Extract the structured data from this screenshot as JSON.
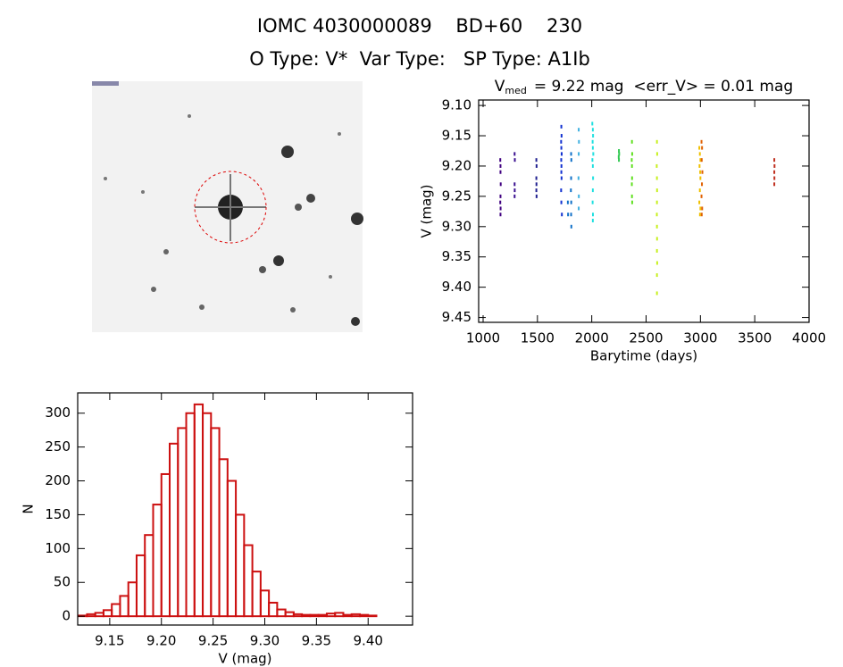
{
  "header": {
    "line1": "IOMC 4030000089    BD+60    230",
    "line2": "O Type: V*  Var Type:   SP Type: A1Ib"
  },
  "chart_data": [
    {
      "type": "scatter",
      "title": {
        "main": "V",
        "sub": "med",
        "rest": "= 9.22 mag  <err_V> = 0.01 mag"
      },
      "x_label": "Barytime (days)",
      "y_label": "V (mag)",
      "xlim": [
        959,
        4000
      ],
      "xticks": [
        1000,
        1500,
        2000,
        2500,
        3000,
        3500,
        4000
      ],
      "ylim": [
        9.458,
        9.091
      ],
      "yticks": [
        {
          "value": 9.1,
          "label": "9.10"
        },
        9.15,
        {
          "value": 9.2,
          "label": "9.20"
        },
        9.25,
        {
          "value": 9.3,
          "label": "9.30"
        },
        9.35,
        {
          "value": 9.4,
          "label": "9.40"
        },
        9.45
      ],
      "series": [
        {
          "color": "#400080",
          "x": [
            1158,
            1160,
            1160,
            1162,
            1160,
            1158,
            1161,
            1160
          ],
          "values": [
            9.19,
            9.2,
            9.21,
            9.23,
            9.25,
            9.26,
            9.27,
            9.28
          ]
        },
        {
          "color": "#3a1090",
          "x": [
            1290,
            1292,
            1290,
            1291,
            1290
          ],
          "values": [
            9.18,
            9.19,
            9.23,
            9.24,
            9.25
          ]
        },
        {
          "color": "#202090",
          "x": [
            1490,
            1492,
            1490,
            1491,
            1490,
            1492
          ],
          "values": [
            9.19,
            9.2,
            9.22,
            9.23,
            9.24,
            9.25
          ]
        },
        {
          "color": "#1030d0",
          "x": [
            1720,
            1722,
            1718,
            1720,
            1723,
            1719,
            1721,
            1720,
            1722,
            1718,
            1720,
            1725
          ],
          "values": [
            9.135,
            9.15,
            9.16,
            9.17,
            9.18,
            9.19,
            9.2,
            9.21,
            9.22,
            9.24,
            9.26,
            9.28
          ]
        },
        {
          "color": "#1070c8",
          "x": [
            1780,
            1782,
            1810,
            1812,
            1810,
            1808,
            1811,
            1810,
            1812
          ],
          "values": [
            9.26,
            9.28,
            9.18,
            9.19,
            9.22,
            9.24,
            9.26,
            9.28,
            9.3
          ]
        },
        {
          "color": "#40b0e0",
          "x": [
            1880,
            1882,
            1880,
            1878,
            1881,
            1880
          ],
          "values": [
            9.14,
            9.16,
            9.18,
            9.22,
            9.25,
            9.27
          ]
        },
        {
          "color": "#20e0e0",
          "x": [
            2005,
            2010,
            2012,
            2008,
            2010,
            2014,
            2006,
            2010,
            2012,
            2010,
            2008,
            2011,
            2010
          ],
          "values": [
            9.13,
            9.14,
            9.15,
            9.16,
            9.17,
            9.18,
            9.19,
            9.2,
            9.22,
            9.24,
            9.26,
            9.28,
            9.29
          ]
        },
        {
          "color": "#30c850",
          "x": [
            2250,
            2252,
            2248,
            2250
          ],
          "values": [
            9.175,
            9.18,
            9.185,
            9.19
          ]
        },
        {
          "color": "#60e020",
          "x": [
            2370,
            2372,
            2368,
            2370,
            2371,
            2369,
            2370,
            2372
          ],
          "values": [
            9.16,
            9.18,
            9.19,
            9.2,
            9.22,
            9.23,
            9.25,
            9.26
          ]
        },
        {
          "color": "#c8f020",
          "x": [
            2600,
            2602,
            2598,
            2600,
            2601,
            2600,
            2599,
            2600,
            2601,
            2600,
            2602,
            2600,
            2600
          ],
          "values": [
            9.16,
            9.18,
            9.2,
            9.22,
            9.24,
            9.26,
            9.28,
            9.3,
            9.32,
            9.34,
            9.36,
            9.38,
            9.41
          ]
        },
        {
          "color": "#f0c000",
          "x": [
            2990,
            2995,
            3000,
            2992,
            2998,
            3000,
            2995,
            2990,
            3000,
            2996
          ],
          "values": [
            9.17,
            9.18,
            9.19,
            9.2,
            9.21,
            9.22,
            9.24,
            9.26,
            9.27,
            9.28
          ]
        },
        {
          "color": "#e06000",
          "x": [
            3010,
            3015,
            3012,
            3018,
            3014,
            3010,
            3016,
            3012
          ],
          "values": [
            9.16,
            9.17,
            9.19,
            9.21,
            9.23,
            9.25,
            9.27,
            9.28
          ]
        },
        {
          "color": "#c03020",
          "x": [
            3680,
            3682,
            3680,
            3681,
            3680
          ],
          "values": [
            9.19,
            9.2,
            9.21,
            9.22,
            9.23
          ]
        }
      ]
    },
    {
      "type": "histogram",
      "color": "#cc1010",
      "x_label": "V (mag)",
      "y_label": "N",
      "xlim": [
        9.119,
        9.443
      ],
      "xticks": [
        9.15,
        {
          "value": 9.2,
          "label": "9.20"
        },
        9.25,
        {
          "value": 9.3,
          "label": "9.30"
        },
        9.35,
        {
          "value": 9.4,
          "label": "9.40"
        }
      ],
      "ylim": [
        -13,
        330
      ],
      "yticks": [
        0,
        50,
        100,
        150,
        200,
        250,
        300
      ],
      "bins": [
        9.12,
        9.128,
        9.136,
        9.144,
        9.152,
        9.16,
        9.168,
        9.176,
        9.184,
        9.192,
        9.2,
        9.208,
        9.216,
        9.224,
        9.232,
        9.24,
        9.248,
        9.256,
        9.264,
        9.272,
        9.28,
        9.288,
        9.296,
        9.304,
        9.312,
        9.32,
        9.328,
        9.336,
        9.344,
        9.352,
        9.36,
        9.368,
        9.376,
        9.384,
        9.392,
        9.4,
        9.408,
        9.416
      ],
      "counts": [
        1,
        3,
        5,
        9,
        18,
        30,
        50,
        90,
        120,
        165,
        210,
        255,
        278,
        300,
        313,
        300,
        278,
        232,
        200,
        150,
        105,
        66,
        38,
        20,
        10,
        6,
        3,
        2,
        2,
        2,
        4,
        5,
        2,
        3,
        2,
        1,
        0
      ]
    }
  ]
}
